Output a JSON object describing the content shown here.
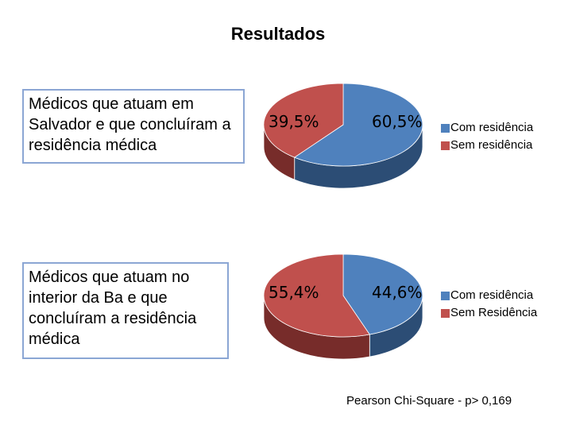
{
  "title": "Resultados",
  "footer": "Pearson Chi-Square - p> 0,169",
  "colors": {
    "com": "#4f81bd",
    "sem": "#c0504d",
    "com_side": "#2c4d75",
    "sem_side": "#772c2a"
  },
  "chart_data": [
    {
      "type": "pie",
      "label": "Médicos que atuam em Salvador e que concluíram a residência médica",
      "slices": [
        {
          "name": "Com residência",
          "value": 60.5,
          "display": "60,5%"
        },
        {
          "name": "Sem residência",
          "value": 39.5,
          "display": "39,5%"
        }
      ],
      "legend": [
        "Com residência",
        "Sem residência"
      ]
    },
    {
      "type": "pie",
      "label": "Médicos que atuam no interior da Ba e que concluíram a residência médica",
      "slices": [
        {
          "name": "Com residência",
          "value": 44.6,
          "display": "44,6%"
        },
        {
          "name": "Sem Residência",
          "value": 55.4,
          "display": "55,4%"
        }
      ],
      "legend": [
        "Com residência",
        "Sem Residência"
      ]
    }
  ]
}
